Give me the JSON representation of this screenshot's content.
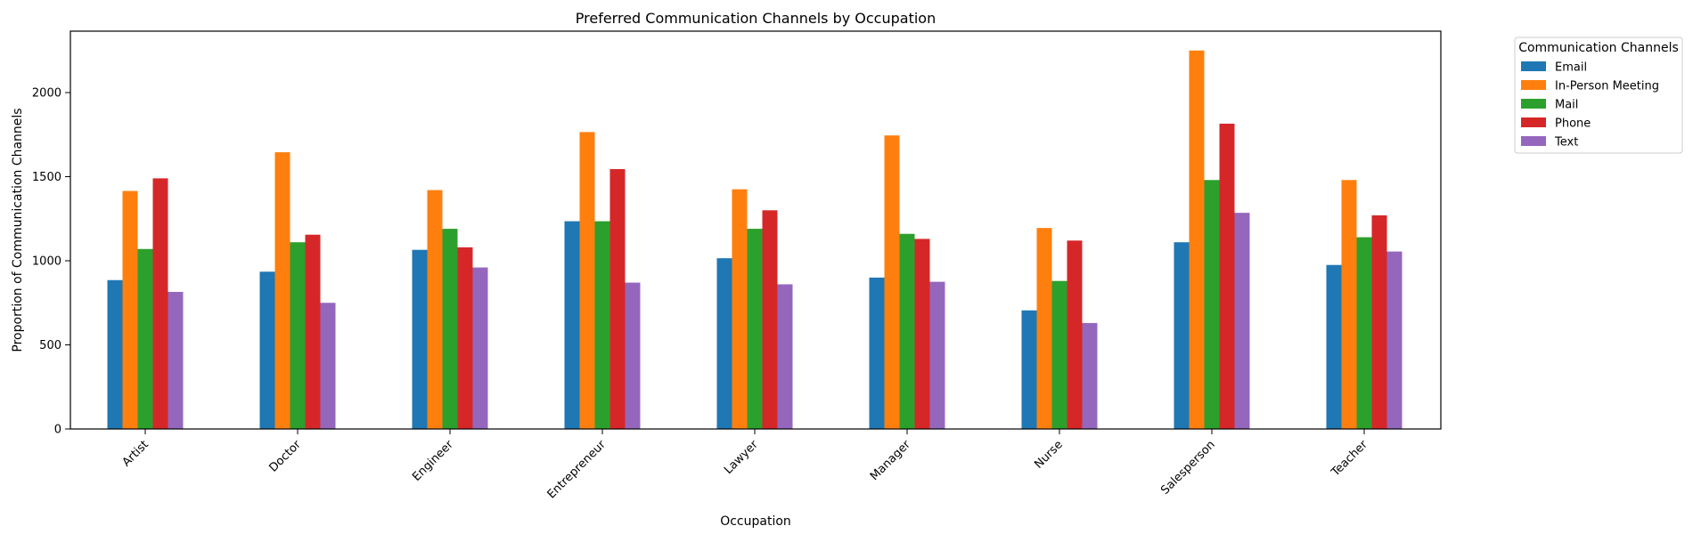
{
  "chart_data": {
    "type": "bar",
    "title": "Preferred Communication Channels by Occupation",
    "xlabel": "Occupation",
    "ylabel": "Proportion of Communication Channels",
    "ylim": [
      0,
      2365
    ],
    "yticks": [
      0,
      500,
      1000,
      1500,
      2000
    ],
    "categories": [
      "Artist",
      "Doctor",
      "Engineer",
      "Entrepreneur",
      "Lawyer",
      "Manager",
      "Nurse",
      "Salesperson",
      "Teacher"
    ],
    "series": [
      {
        "name": "Email",
        "color": "#1f77b4",
        "values": [
          885,
          935,
          1065,
          1235,
          1015,
          900,
          705,
          1110,
          975
        ]
      },
      {
        "name": "In-Person Meeting",
        "color": "#ff7f0e",
        "values": [
          1415,
          1645,
          1420,
          1765,
          1425,
          1745,
          1195,
          2250,
          1480
        ]
      },
      {
        "name": "Mail",
        "color": "#2ca02c",
        "values": [
          1070,
          1110,
          1190,
          1235,
          1190,
          1160,
          880,
          1480,
          1140
        ]
      },
      {
        "name": "Phone",
        "color": "#d62728",
        "values": [
          1490,
          1155,
          1080,
          1545,
          1300,
          1130,
          1120,
          1815,
          1270
        ]
      },
      {
        "name": "Text",
        "color": "#9467bd",
        "values": [
          815,
          750,
          960,
          870,
          860,
          875,
          630,
          1285,
          1055
        ]
      }
    ],
    "legend": {
      "title": "Communication Channels",
      "position": "outside-top-right"
    },
    "grid": false
  }
}
